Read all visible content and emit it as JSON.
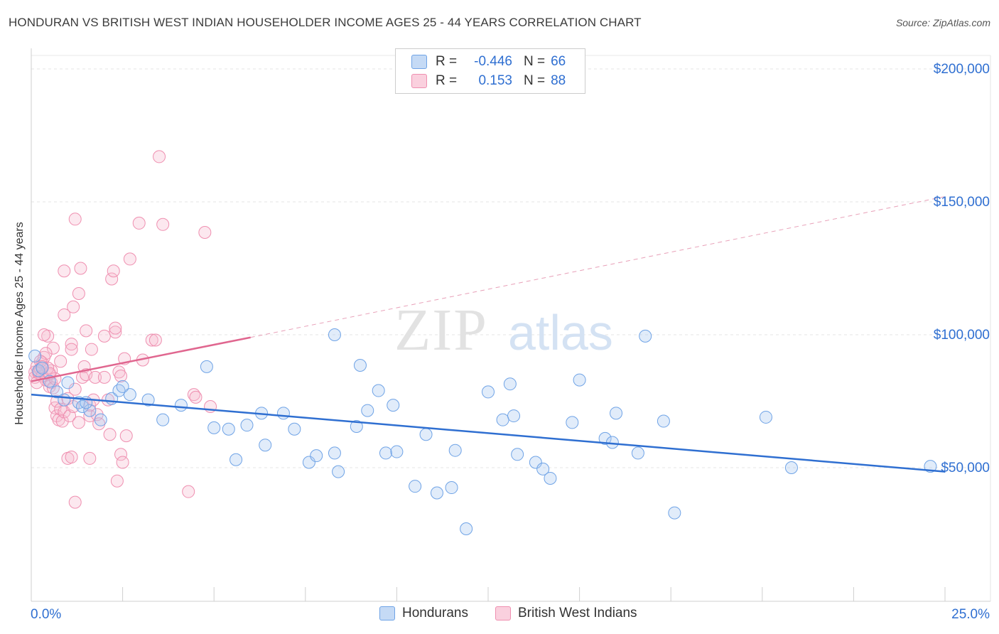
{
  "title": "HONDURAN VS BRITISH WEST INDIAN HOUSEHOLDER INCOME AGES 25 - 44 YEARS CORRELATION CHART",
  "source": "Source: ZipAtlas.com",
  "watermark": {
    "zip": "ZIP",
    "atlas": "atlas"
  },
  "legend_top": {
    "r_label": "R =",
    "n_label": "N =",
    "rows": [
      {
        "r": "-0.446",
        "n": "66",
        "color": "#a9c8f0"
      },
      {
        "r": "0.153",
        "n": "88",
        "color": "#f7bcd0"
      }
    ]
  },
  "legend_bottom": {
    "items": [
      {
        "label": "Hondurans",
        "color": "#a9c8f0"
      },
      {
        "label": "British West Indians",
        "color": "#f7bcd0"
      }
    ]
  },
  "chart_data": {
    "type": "scatter",
    "title": "HONDURAN VS BRITISH WEST INDIAN HOUSEHOLDER INCOME AGES 25 - 44 YEARS CORRELATION CHART",
    "xlabel": "",
    "ylabel": "Householder Income Ages 25 - 44 years",
    "xlim": [
      0,
      25
    ],
    "ylim": [
      0,
      210000
    ],
    "x_tick_labels": [
      "0.0%",
      "25.0%"
    ],
    "y_ticks": [
      50000,
      100000,
      150000,
      200000
    ],
    "y_tick_labels": [
      "$50,000",
      "$100,000",
      "$150,000",
      "$200,000"
    ],
    "grid": true,
    "colors": {
      "hondurans": "#6fa3e6",
      "british_west_indians": "#ef8fb0",
      "blue_line": "#2f6fd1",
      "pink_line": "#e0668f",
      "tick_label": "#2f6fd1"
    },
    "series": [
      {
        "name": "Hondurans",
        "points": [
          [
            0.1,
            92000
          ],
          [
            0.2,
            86500
          ],
          [
            0.3,
            87500
          ],
          [
            0.5,
            82500
          ],
          [
            0.7,
            78500
          ],
          [
            0.9,
            75500
          ],
          [
            1.0,
            82000
          ],
          [
            1.3,
            74500
          ],
          [
            1.4,
            73000
          ],
          [
            1.6,
            71500
          ],
          [
            1.9,
            68000
          ],
          [
            2.2,
            76000
          ],
          [
            2.7,
            77500
          ],
          [
            2.4,
            79000
          ],
          [
            2.5,
            80500
          ],
          [
            3.2,
            75500
          ],
          [
            3.6,
            68000
          ],
          [
            4.1,
            73500
          ],
          [
            4.8,
            88000
          ],
          [
            5.0,
            65000
          ],
          [
            5.4,
            64500
          ],
          [
            5.6,
            53000
          ],
          [
            5.9,
            66000
          ],
          [
            6.3,
            70500
          ],
          [
            6.4,
            58500
          ],
          [
            6.9,
            70500
          ],
          [
            7.2,
            64500
          ],
          [
            7.6,
            52000
          ],
          [
            7.8,
            54500
          ],
          [
            8.3,
            100000
          ],
          [
            8.3,
            55500
          ],
          [
            8.4,
            48500
          ],
          [
            8.9,
            65500
          ],
          [
            9.0,
            88500
          ],
          [
            9.2,
            71500
          ],
          [
            9.5,
            79000
          ],
          [
            9.7,
            55500
          ],
          [
            9.9,
            73500
          ],
          [
            10.0,
            56000
          ],
          [
            10.5,
            43000
          ],
          [
            10.8,
            62500
          ],
          [
            11.1,
            40500
          ],
          [
            11.5,
            42500
          ],
          [
            11.6,
            56500
          ],
          [
            11.9,
            27000
          ],
          [
            12.5,
            78500
          ],
          [
            12.9,
            68000
          ],
          [
            13.1,
            81500
          ],
          [
            13.2,
            69500
          ],
          [
            13.3,
            55000
          ],
          [
            13.8,
            52000
          ],
          [
            14.0,
            49500
          ],
          [
            14.2,
            46000
          ],
          [
            14.8,
            67000
          ],
          [
            15.0,
            83000
          ],
          [
            15.7,
            61000
          ],
          [
            15.9,
            59500
          ],
          [
            16.0,
            70500
          ],
          [
            16.6,
            55500
          ],
          [
            16.8,
            99500
          ],
          [
            17.3,
            67500
          ],
          [
            17.6,
            33000
          ],
          [
            20.1,
            69000
          ],
          [
            20.8,
            50000
          ],
          [
            24.6,
            50500
          ],
          [
            1.5,
            74500
          ]
        ]
      },
      {
        "name": "British West Indians",
        "points": [
          [
            0.1,
            86000
          ],
          [
            0.1,
            84000
          ],
          [
            0.15,
            88000
          ],
          [
            0.2,
            85500
          ],
          [
            0.25,
            87000
          ],
          [
            0.3,
            89500
          ],
          [
            0.35,
            91500
          ],
          [
            0.4,
            83000
          ],
          [
            0.45,
            99500
          ],
          [
            0.5,
            80500
          ],
          [
            0.5,
            85000
          ],
          [
            0.55,
            82000
          ],
          [
            0.6,
            95000
          ],
          [
            0.65,
            72500
          ],
          [
            0.7,
            69500
          ],
          [
            0.7,
            75000
          ],
          [
            0.75,
            68000
          ],
          [
            0.8,
            72000
          ],
          [
            0.85,
            67500
          ],
          [
            0.9,
            71000
          ],
          [
            0.8,
            90000
          ],
          [
            0.9,
            124000
          ],
          [
            0.9,
            107500
          ],
          [
            1.0,
            76000
          ],
          [
            1.0,
            53500
          ],
          [
            1.05,
            69500
          ],
          [
            1.1,
            96500
          ],
          [
            1.1,
            94500
          ],
          [
            1.15,
            73000
          ],
          [
            1.2,
            79500
          ],
          [
            1.15,
            110500
          ],
          [
            1.2,
            143500
          ],
          [
            1.2,
            37000
          ],
          [
            1.3,
            67000
          ],
          [
            1.3,
            115500
          ],
          [
            1.35,
            125000
          ],
          [
            1.4,
            84000
          ],
          [
            1.45,
            88000
          ],
          [
            1.5,
            101500
          ],
          [
            1.5,
            85000
          ],
          [
            1.6,
            53500
          ],
          [
            1.6,
            73500
          ],
          [
            1.6,
            69500
          ],
          [
            1.65,
            94500
          ],
          [
            1.7,
            75500
          ],
          [
            1.75,
            84000
          ],
          [
            1.8,
            70000
          ],
          [
            1.85,
            66500
          ],
          [
            2.0,
            99500
          ],
          [
            2.0,
            84000
          ],
          [
            2.1,
            75500
          ],
          [
            2.15,
            62500
          ],
          [
            2.2,
            121000
          ],
          [
            2.25,
            124000
          ],
          [
            2.3,
            101000
          ],
          [
            2.3,
            102500
          ],
          [
            2.35,
            45000
          ],
          [
            2.4,
            86000
          ],
          [
            2.45,
            84500
          ],
          [
            2.45,
            55000
          ],
          [
            2.5,
            52000
          ],
          [
            2.55,
            91000
          ],
          [
            2.6,
            62000
          ],
          [
            2.7,
            128500
          ],
          [
            2.95,
            142000
          ],
          [
            3.05,
            90500
          ],
          [
            3.3,
            98000
          ],
          [
            3.4,
            98000
          ],
          [
            3.5,
            167000
          ],
          [
            3.6,
            141500
          ],
          [
            4.3,
            41000
          ],
          [
            4.45,
            77500
          ],
          [
            4.5,
            76500
          ],
          [
            4.75,
            138500
          ],
          [
            4.9,
            73000
          ],
          [
            0.4,
            93000
          ],
          [
            0.35,
            100000
          ],
          [
            0.55,
            86500
          ],
          [
            0.6,
            80000
          ],
          [
            1.1,
            54000
          ],
          [
            0.2,
            86000
          ],
          [
            0.3,
            84500
          ],
          [
            0.45,
            87500
          ],
          [
            0.65,
            83500
          ],
          [
            0.25,
            90000
          ],
          [
            0.15,
            82000
          ],
          [
            0.5,
            85500
          ],
          [
            0.3,
            88000
          ]
        ]
      }
    ],
    "trend_lines": [
      {
        "series": "Hondurans",
        "x": [
          0,
          25
        ],
        "y": [
          77500,
          48500
        ]
      },
      {
        "series": "British West Indians",
        "x": [
          0,
          6
        ],
        "y": [
          82500,
          99000
        ],
        "dashed_extension_to": [
          25,
          152000
        ]
      }
    ]
  }
}
